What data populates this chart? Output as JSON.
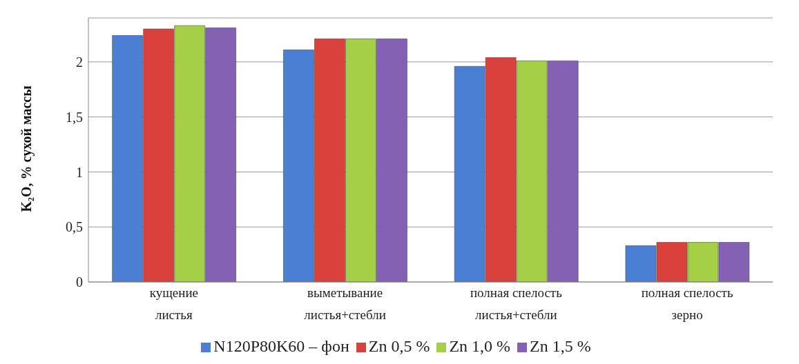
{
  "chart_data": {
    "type": "bar",
    "ylabel": "K₂O, % сухой массы",
    "categories": [
      "кущение\nлистья",
      "выметывание\nлистья+стебли",
      "полная спелость\nлистья+стебли",
      "полная спелость\nзерно"
    ],
    "series": [
      {
        "name": "N120P80K60 – фон",
        "color": "#4a7fd4",
        "values": [
          2.24,
          2.11,
          1.96,
          0.33
        ]
      },
      {
        "name": "Zn 0,5 %",
        "color": "#d9413c",
        "values": [
          2.3,
          2.21,
          2.04,
          0.36
        ]
      },
      {
        "name": "Zn 1,0 %",
        "color": "#a4cf47",
        "values": [
          2.33,
          2.21,
          2.01,
          0.36
        ]
      },
      {
        "name": "Zn 1,5 %",
        "color": "#8561b4",
        "values": [
          2.31,
          2.21,
          2.01,
          0.36
        ]
      }
    ],
    "ylim": [
      0,
      2.4
    ],
    "yticks": [
      0,
      {
        "value": 0.5,
        "label": "0,5"
      },
      1,
      {
        "value": 1.5,
        "label": "1,5"
      },
      2
    ],
    "grid": "y",
    "legend": "bottom"
  }
}
